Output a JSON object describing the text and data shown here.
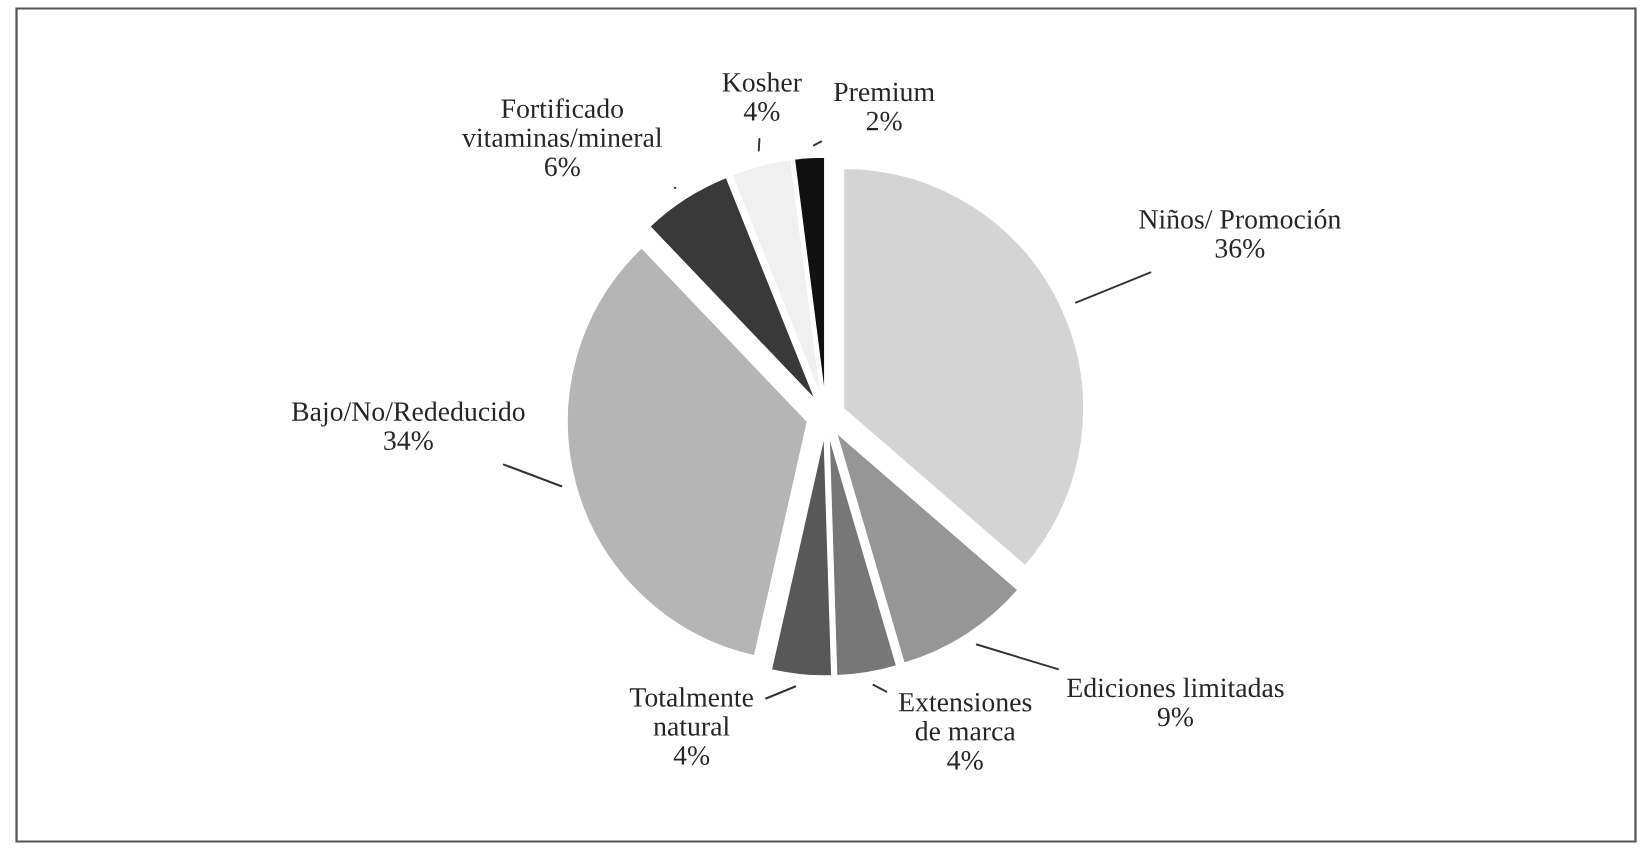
{
  "chart_data": {
    "type": "pie",
    "categories": [
      "Niños/ Promoción",
      "Ediciones limitadas",
      "Extensiones\nde marca",
      "Totalmente\nnatural",
      "Bajo/No/Rededucido",
      "Fortificado\nvitaminas/mineral",
      "Kosher",
      "Premium"
    ],
    "values": [
      36,
      9,
      4,
      4,
      34,
      6,
      4,
      2
    ],
    "colors": [
      "#d4d4d4",
      "#969696",
      "#777777",
      "#585858",
      "#b5b5b5",
      "#393939",
      "#f0f0f0",
      "#111111"
    ],
    "value_labels": [
      "36%",
      "9%",
      "4%",
      "4%",
      "34%",
      "6%",
      "4%",
      "2%"
    ]
  }
}
